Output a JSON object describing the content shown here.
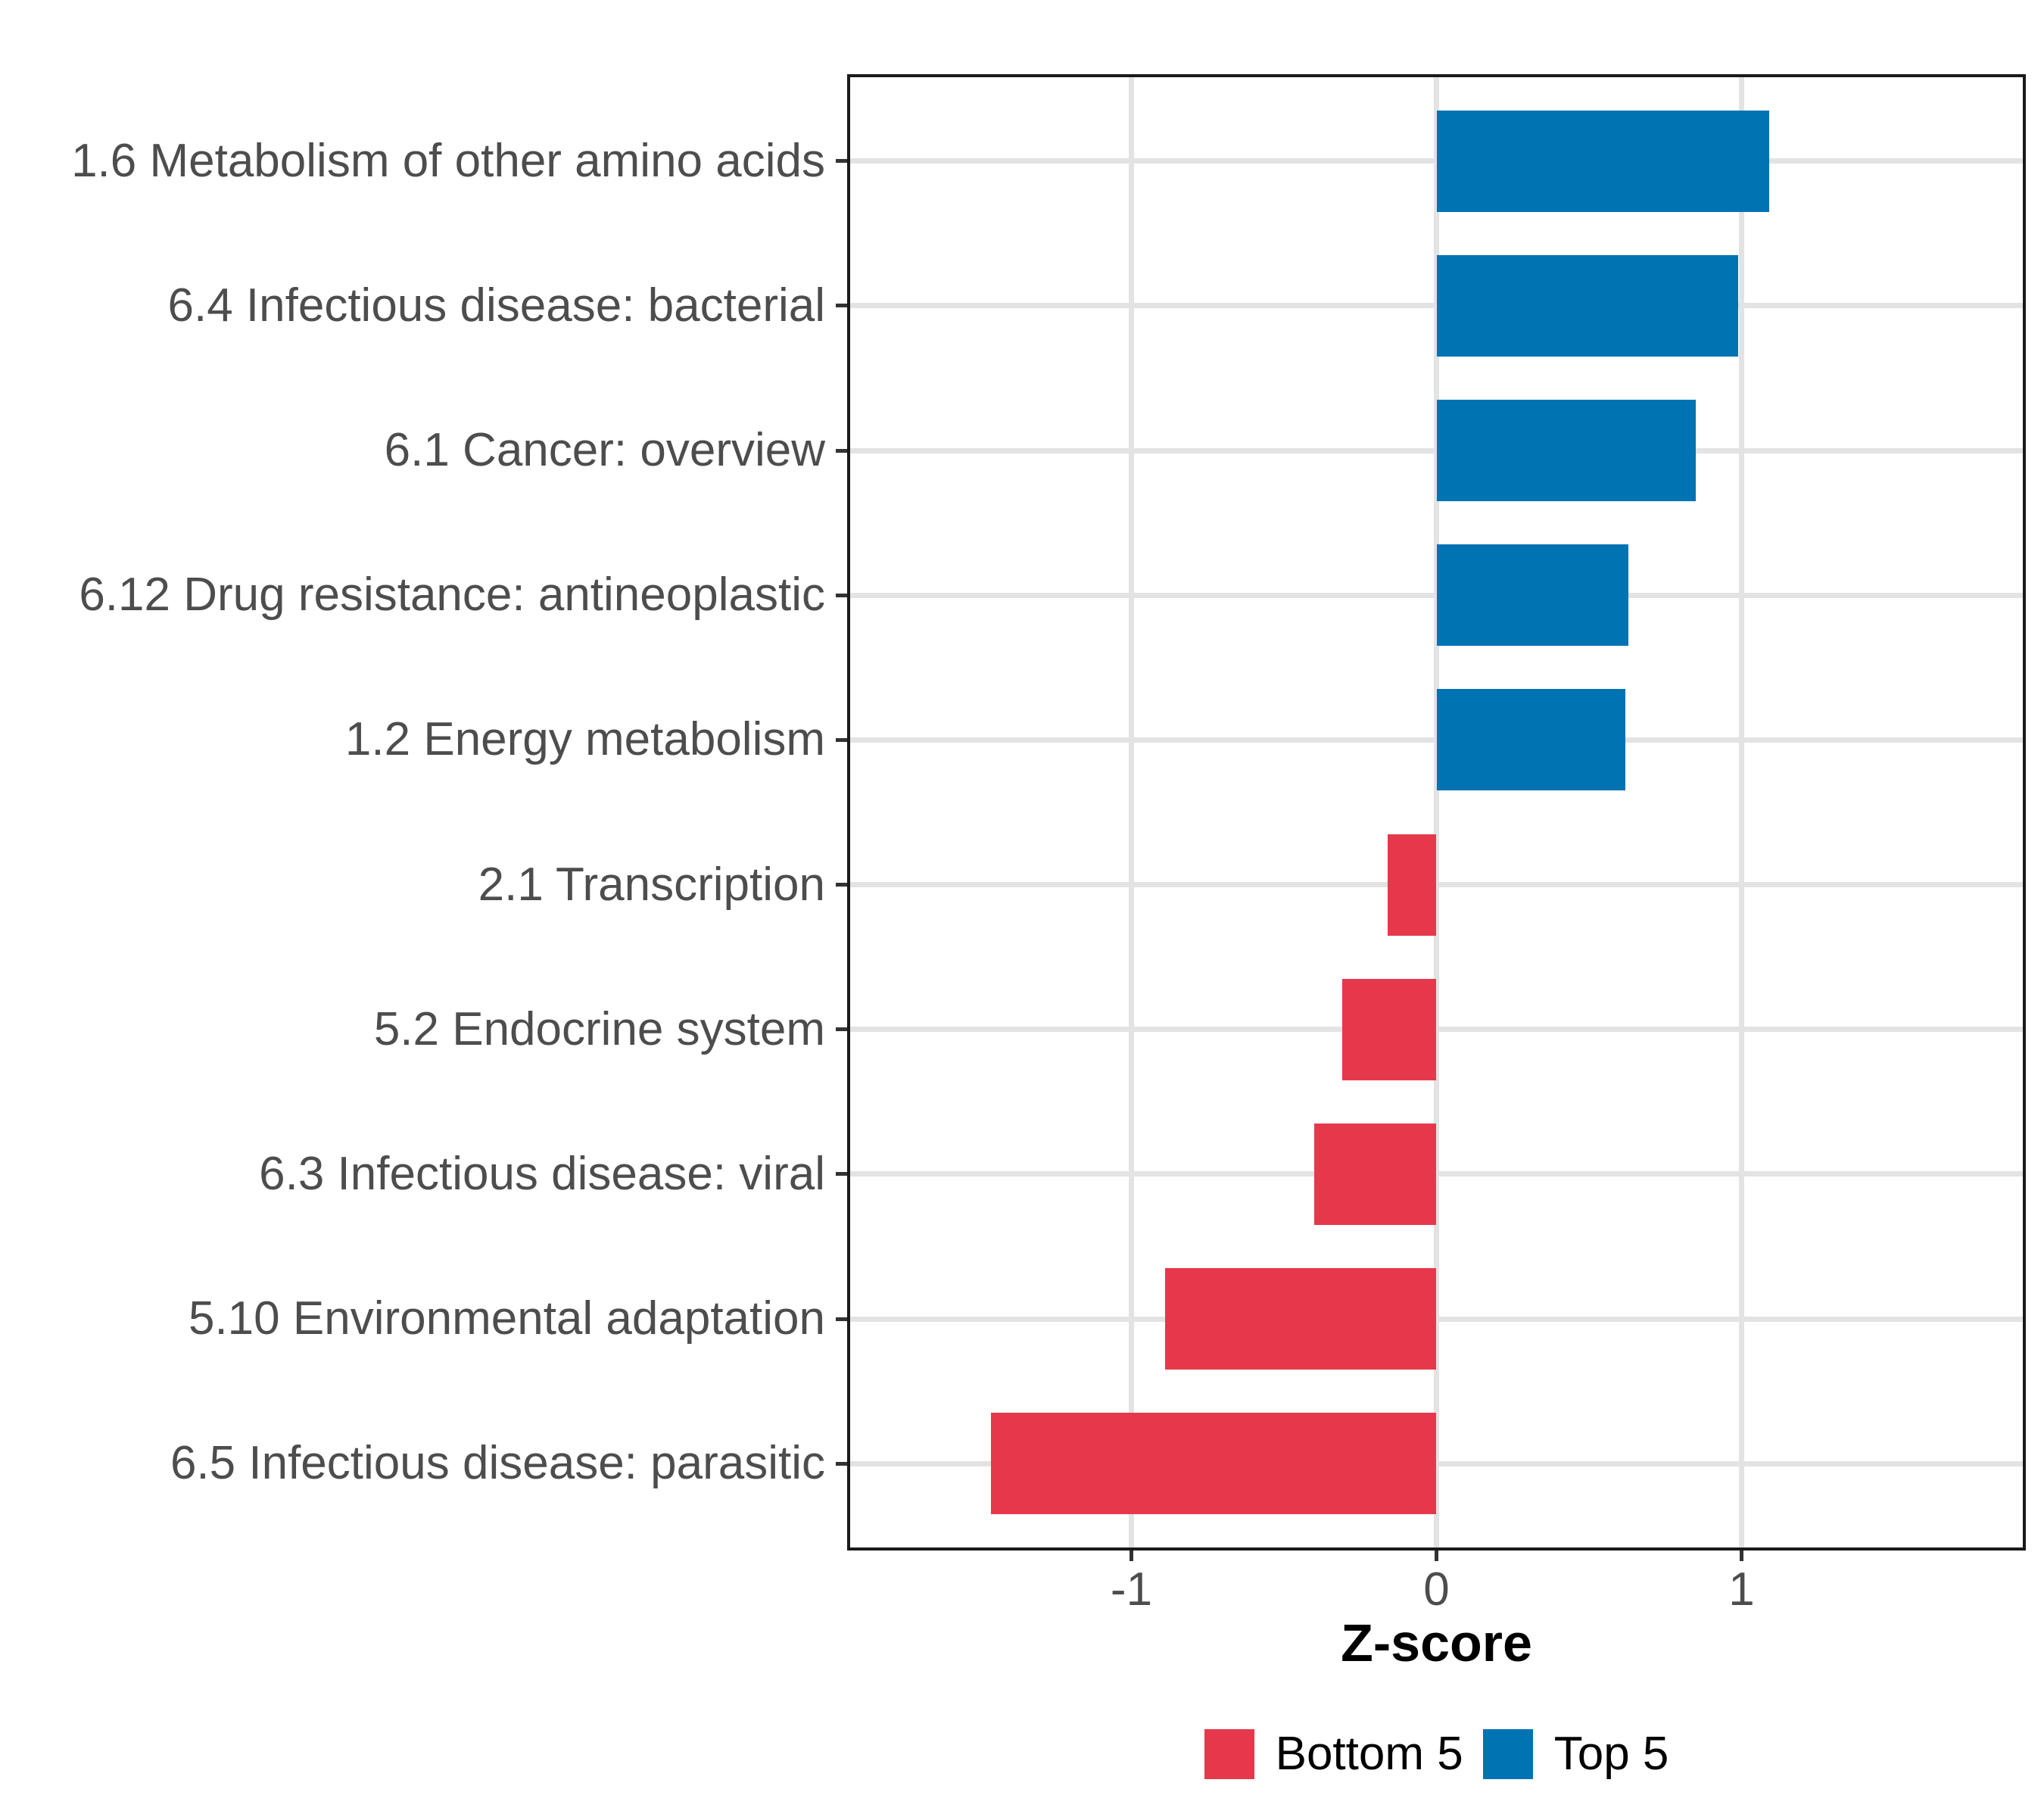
{
  "chart_data": {
    "type": "bar",
    "orientation": "horizontal",
    "title": "",
    "xlabel": "Z-score",
    "ylabel": "",
    "x_ticks": [
      -1,
      0,
      1
    ],
    "xlim": [
      -1.93,
      1.93
    ],
    "grid": {
      "vertical_at": [
        -1,
        0,
        1
      ],
      "horizontal_per_category": true,
      "color": "#e3e3e3"
    },
    "categories": [
      "1.6 Metabolism of other amino acids",
      "6.4 Infectious disease: bacterial",
      "6.1 Cancer: overview",
      "6.12 Drug resistance: antineoplastic",
      "1.2 Energy metabolism",
      "2.1 Transcription",
      "5.2 Endocrine system",
      "6.3 Infectious disease: viral",
      "5.10 Environmental adaptation",
      "6.5 Infectious disease: parasitic"
    ],
    "values": [
      1.09,
      0.99,
      0.85,
      0.63,
      0.62,
      -0.16,
      -0.31,
      -0.4,
      -0.89,
      -1.46
    ],
    "groups": [
      "Top 5",
      "Top 5",
      "Top 5",
      "Top 5",
      "Top 5",
      "Bottom 5",
      "Bottom 5",
      "Bottom 5",
      "Bottom 5",
      "Bottom 5"
    ],
    "colors": {
      "Bottom 5": "#E5394B",
      "Top 5": "#0073B3"
    },
    "legend": {
      "position": "bottom",
      "entries": [
        {
          "label": "Bottom 5",
          "color": "#E5394B"
        },
        {
          "label": "Top 5",
          "color": "#0073B3"
        }
      ]
    },
    "style": {
      "axis_text_color": "#4d4d4d",
      "axis_title_color": "#000000",
      "panel_border_color": "#1a1a1a",
      "tick_color": "#333333",
      "gridline_color": "#e3e3e3",
      "background": "#ffffff"
    }
  }
}
